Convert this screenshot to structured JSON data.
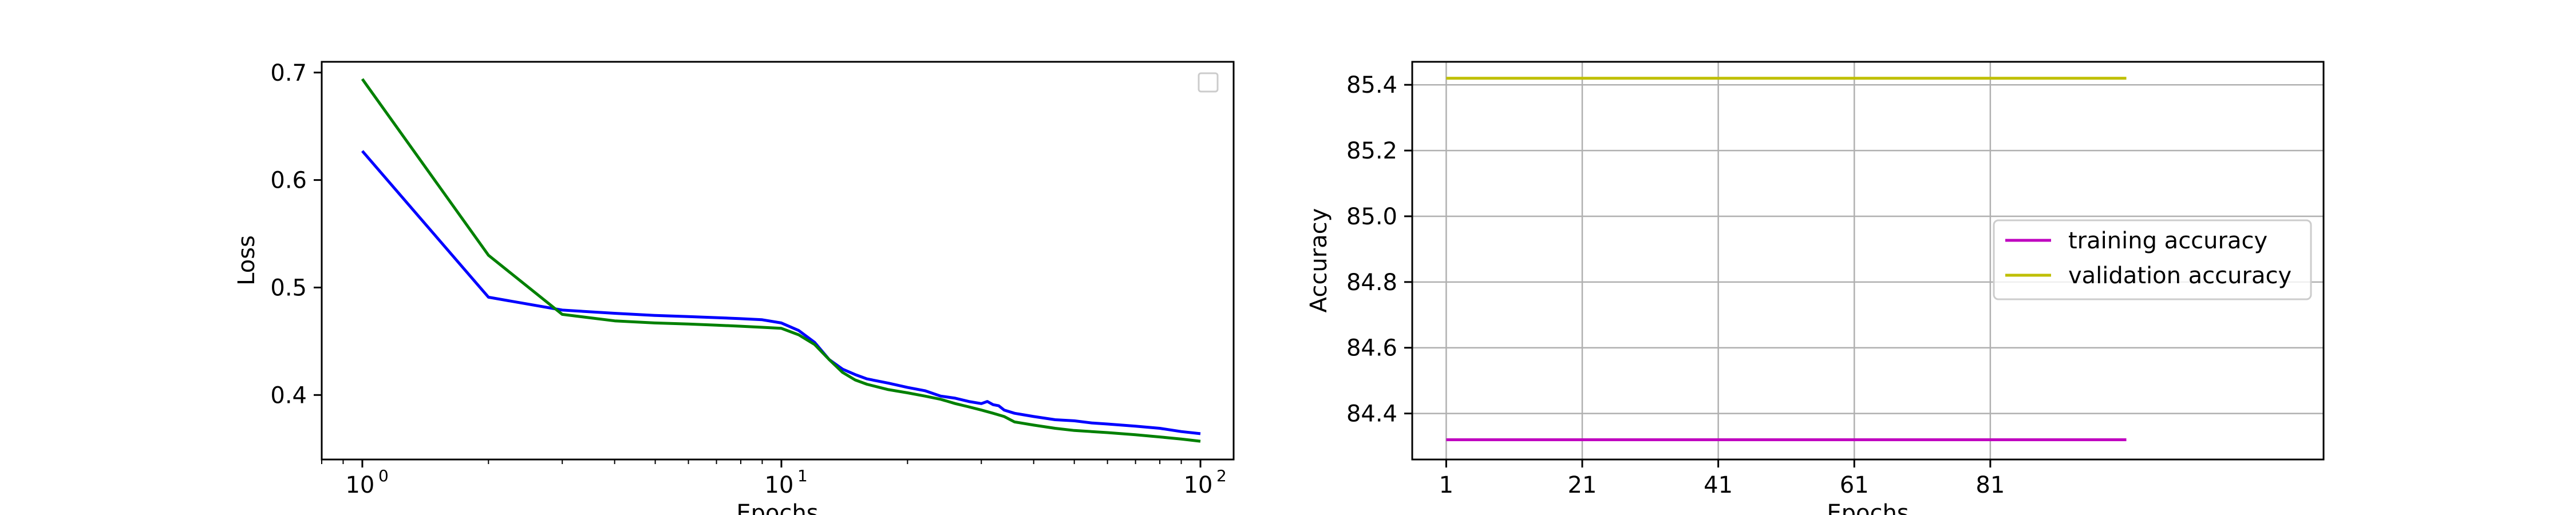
{
  "chart_data": [
    {
      "type": "line",
      "xlabel": "Epochs",
      "ylabel": "Loss",
      "xscale": "log",
      "xlim": [
        0.8,
        120
      ],
      "ylim": [
        0.34,
        0.71
      ],
      "xticks": [
        1,
        10,
        100
      ],
      "xtick_labels": [
        [
          "10",
          "0"
        ],
        [
          "10",
          "1"
        ],
        [
          "10",
          "2"
        ]
      ],
      "yticks": [
        0.4,
        0.5,
        0.6,
        0.7
      ],
      "ytick_labels": [
        "0.4",
        "0.5",
        "0.6",
        "0.7"
      ],
      "grid": false,
      "legend": {
        "placement": "top-right",
        "entries": []
      },
      "series": [
        {
          "color": "#0000ff",
          "x": [
            1,
            2,
            3,
            4,
            5,
            6,
            7,
            8,
            9,
            10,
            11,
            12,
            13,
            14,
            15,
            16,
            18,
            20,
            22,
            24,
            26,
            28,
            30,
            31,
            32,
            33,
            34,
            36,
            40,
            45,
            50,
            55,
            60,
            70,
            80,
            90,
            100
          ],
          "y": [
            0.627,
            0.491,
            0.479,
            0.476,
            0.474,
            0.473,
            0.472,
            0.471,
            0.47,
            0.467,
            0.46,
            0.449,
            0.433,
            0.424,
            0.419,
            0.415,
            0.411,
            0.407,
            0.404,
            0.399,
            0.397,
            0.394,
            0.392,
            0.394,
            0.391,
            0.39,
            0.386,
            0.383,
            0.38,
            0.377,
            0.376,
            0.374,
            0.373,
            0.371,
            0.369,
            0.366,
            0.364
          ]
        },
        {
          "color": "#008000",
          "x": [
            1,
            2,
            3,
            4,
            5,
            6,
            7,
            8,
            9,
            10,
            11,
            12,
            13,
            14,
            15,
            16,
            18,
            20,
            22,
            24,
            26,
            28,
            30,
            32,
            34,
            36,
            40,
            45,
            50,
            55,
            60,
            70,
            80,
            90,
            100
          ],
          "y": [
            0.694,
            0.53,
            0.475,
            0.469,
            0.467,
            0.466,
            0.465,
            0.464,
            0.463,
            0.462,
            0.456,
            0.447,
            0.433,
            0.421,
            0.414,
            0.41,
            0.405,
            0.402,
            0.399,
            0.396,
            0.392,
            0.389,
            0.386,
            0.383,
            0.38,
            0.375,
            0.372,
            0.369,
            0.367,
            0.366,
            0.365,
            0.363,
            0.361,
            0.359,
            0.357
          ]
        }
      ]
    },
    {
      "type": "line",
      "xlabel": "Epochs",
      "ylabel": "Accuracy",
      "xlim": [
        -4,
        130
      ],
      "ylim": [
        84.26,
        85.47
      ],
      "xticks": [
        1,
        21,
        41,
        61,
        81
      ],
      "xtick_labels": [
        "1",
        "21",
        "41",
        "61",
        "81"
      ],
      "yticks": [
        84.4,
        84.6,
        84.8,
        85.0,
        85.2,
        85.4
      ],
      "ytick_labels": [
        "84.4",
        "84.6",
        "84.8",
        "85.0",
        "85.2",
        "85.4"
      ],
      "grid": true,
      "legend": {
        "placement": "center-right"
      },
      "series": [
        {
          "name": "training accuracy",
          "color": "#bf00bf",
          "x": [
            1,
            101
          ],
          "y": [
            84.32,
            84.32
          ]
        },
        {
          "name": "validation accuracy",
          "color": "#bfbf00",
          "x": [
            1,
            101
          ],
          "y": [
            85.42,
            85.42
          ]
        }
      ]
    }
  ]
}
